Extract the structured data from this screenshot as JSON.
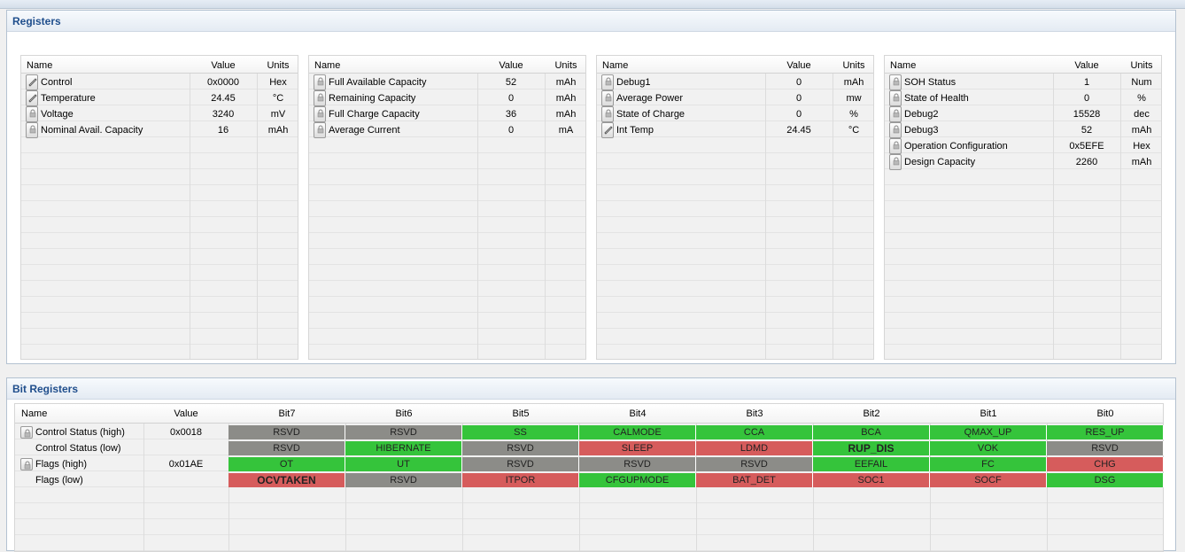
{
  "colors": {
    "set": "#35c43b",
    "clear": "#d65c5c",
    "reserved": "#8c8c88",
    "header_text": "#1f4e8c"
  },
  "registers_panel": {
    "title": "Registers",
    "columns": {
      "name": "Name",
      "value": "Value",
      "units": "Units"
    },
    "tables": [
      {
        "rows": [
          {
            "icon": "pencil-icon",
            "name": "Control",
            "value": "0x0000",
            "units": "Hex"
          },
          {
            "icon": "pencil-icon",
            "name": "Temperature",
            "value": "24.45",
            "units": "°C"
          },
          {
            "icon": "lock-icon",
            "name": "Voltage",
            "value": "3240",
            "units": "mV"
          },
          {
            "icon": "lock-icon",
            "name": "Nominal Avail. Capacity",
            "value": "16",
            "units": "mAh"
          }
        ]
      },
      {
        "rows": [
          {
            "icon": "lock-icon",
            "name": "Full Available Capacity",
            "value": "52",
            "units": "mAh"
          },
          {
            "icon": "lock-icon",
            "name": "Remaining Capacity",
            "value": "0",
            "units": "mAh"
          },
          {
            "icon": "lock-icon",
            "name": "Full Charge Capacity",
            "value": "36",
            "units": "mAh"
          },
          {
            "icon": "lock-icon",
            "name": "Average Current",
            "value": "0",
            "units": "mA"
          }
        ]
      },
      {
        "rows": [
          {
            "icon": "lock-icon",
            "name": "Debug1",
            "value": "0",
            "units": "mAh"
          },
          {
            "icon": "lock-icon",
            "name": "Average Power",
            "value": "0",
            "units": "mw"
          },
          {
            "icon": "lock-icon",
            "name": "State of Charge",
            "value": "0",
            "units": "%"
          },
          {
            "icon": "pencil-icon",
            "name": "Int Temp",
            "value": "24.45",
            "units": "°C"
          }
        ]
      },
      {
        "rows": [
          {
            "icon": "lock-icon",
            "name": "SOH Status",
            "value": "1",
            "units": "Num"
          },
          {
            "icon": "lock-icon",
            "name": "State of Health",
            "value": "0",
            "units": "%"
          },
          {
            "icon": "lock-icon",
            "name": "Debug2",
            "value": "15528",
            "units": "dec"
          },
          {
            "icon": "lock-icon",
            "name": "Debug3",
            "value": "52",
            "units": "mAh"
          },
          {
            "icon": "lock-icon",
            "name": "Operation Configuration",
            "value": "0x5EFE",
            "units": "Hex"
          },
          {
            "icon": "lock-icon",
            "name": "Design Capacity",
            "value": "2260",
            "units": "mAh"
          }
        ]
      }
    ]
  },
  "bit_panel": {
    "title": "Bit Registers",
    "columns": [
      "Name",
      "Value",
      "Bit7",
      "Bit6",
      "Bit5",
      "Bit4",
      "Bit3",
      "Bit2",
      "Bit1",
      "Bit0"
    ],
    "rows": [
      {
        "icon": "lock-icon",
        "name": "Control Status (high)",
        "value": "0x0018",
        "bits": [
          {
            "label": "RSVD",
            "state": "reserved"
          },
          {
            "label": "RSVD",
            "state": "reserved"
          },
          {
            "label": "SS",
            "state": "set"
          },
          {
            "label": "CALMODE",
            "state": "set"
          },
          {
            "label": "CCA",
            "state": "set"
          },
          {
            "label": "BCA",
            "state": "set"
          },
          {
            "label": "QMAX_UP",
            "state": "set"
          },
          {
            "label": "RES_UP",
            "state": "set"
          }
        ]
      },
      {
        "icon": "",
        "name": "Control Status (low)",
        "value": "",
        "bits": [
          {
            "label": "RSVD",
            "state": "reserved"
          },
          {
            "label": "HIBERNATE",
            "state": "set"
          },
          {
            "label": "RSVD",
            "state": "reserved"
          },
          {
            "label": "SLEEP",
            "state": "clear"
          },
          {
            "label": "LDMD",
            "state": "clear"
          },
          {
            "label": "RUP_DIS",
            "state": "set",
            "bold": true
          },
          {
            "label": "VOK",
            "state": "set"
          },
          {
            "label": "RSVD",
            "state": "reserved"
          }
        ]
      },
      {
        "icon": "lock-icon",
        "name": "Flags (high)",
        "value": "0x01AE",
        "bits": [
          {
            "label": "OT",
            "state": "set"
          },
          {
            "label": "UT",
            "state": "set"
          },
          {
            "label": "RSVD",
            "state": "reserved"
          },
          {
            "label": "RSVD",
            "state": "reserved"
          },
          {
            "label": "RSVD",
            "state": "reserved"
          },
          {
            "label": "EEFAIL",
            "state": "set"
          },
          {
            "label": "FC",
            "state": "set"
          },
          {
            "label": "CHG",
            "state": "clear"
          }
        ]
      },
      {
        "icon": "",
        "name": "Flags (low)",
        "value": "",
        "bits": [
          {
            "label": "OCVTAKEN",
            "state": "clear",
            "bold": true
          },
          {
            "label": "RSVD",
            "state": "reserved"
          },
          {
            "label": "ITPOR",
            "state": "clear"
          },
          {
            "label": "CFGUPMODE",
            "state": "set"
          },
          {
            "label": "BAT_DET",
            "state": "clear"
          },
          {
            "label": "SOC1",
            "state": "clear"
          },
          {
            "label": "SOCF",
            "state": "clear"
          },
          {
            "label": "DSG",
            "state": "set"
          }
        ]
      }
    ]
  }
}
